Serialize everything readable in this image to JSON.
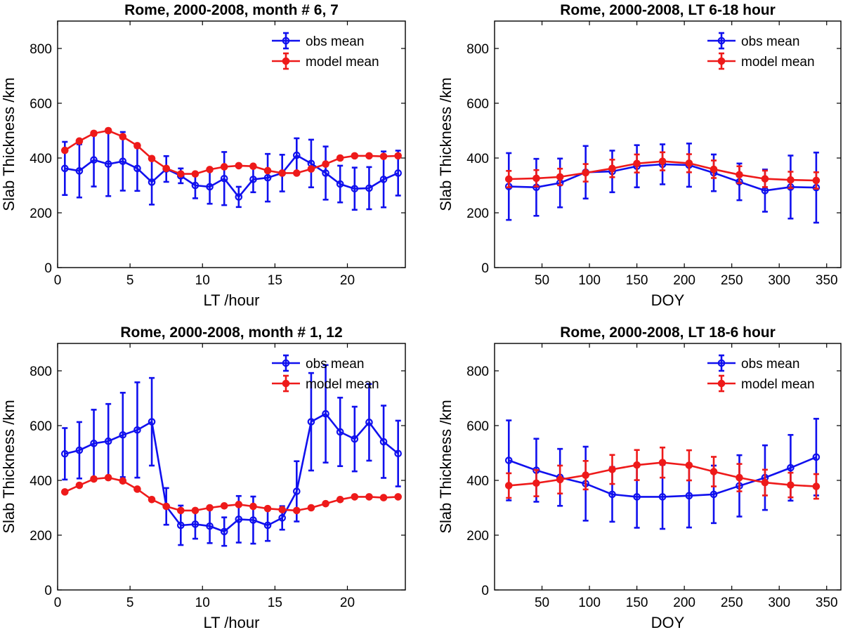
{
  "colors": {
    "obs": "#1010ee",
    "model": "#ee1a1a",
    "axis": "#000000",
    "background": "#ffffff"
  },
  "chart_data": [
    {
      "type": "line",
      "title": "Rome, 2000-2008, month # 6, 7",
      "xlabel": "LT /hour",
      "ylabel": "Slab Thickness /km",
      "xlim": [
        0,
        24
      ],
      "ylim": [
        0,
        900
      ],
      "xticks": [
        0,
        5,
        10,
        15,
        20
      ],
      "yticks": [
        0,
        200,
        400,
        600,
        800
      ],
      "legend": "top-right",
      "series": [
        {
          "name": "obs mean",
          "x": [
            0.5,
            1.5,
            2.5,
            3.5,
            4.5,
            5.5,
            6.5,
            7.5,
            8.5,
            9.5,
            10.5,
            11.5,
            12.5,
            13.5,
            14.5,
            15.5,
            16.5,
            17.5,
            18.5,
            19.5,
            20.5,
            21.5,
            22.5,
            23.5
          ],
          "y": [
            362,
            353,
            393,
            378,
            388,
            362,
            312,
            360,
            335,
            300,
            295,
            325,
            258,
            322,
            328,
            345,
            410,
            380,
            345,
            305,
            288,
            290,
            322,
            345
          ],
          "err": [
            97,
            97,
            97,
            117,
            107,
            82,
            82,
            47,
            27,
            47,
            62,
            97,
            37,
            47,
            87,
            67,
            62,
            87,
            97,
            67,
            77,
            77,
            102,
            82
          ]
        },
        {
          "name": "model mean",
          "x": [
            0.5,
            1.5,
            2.5,
            3.5,
            4.5,
            5.5,
            6.5,
            7.5,
            8.5,
            9.5,
            10.5,
            11.5,
            12.5,
            13.5,
            14.5,
            15.5,
            16.5,
            17.5,
            18.5,
            19.5,
            20.5,
            21.5,
            22.5,
            23.5
          ],
          "y": [
            428,
            462,
            490,
            500,
            478,
            445,
            398,
            362,
            342,
            342,
            358,
            368,
            372,
            370,
            354,
            345,
            345,
            360,
            378,
            400,
            408,
            408,
            406,
            408
          ],
          "err": [
            6,
            6,
            7,
            7,
            7,
            7,
            6,
            6,
            5,
            5,
            5,
            5,
            5,
            5,
            5,
            5,
            5,
            5,
            6,
            6,
            6,
            6,
            6,
            6
          ]
        }
      ]
    },
    {
      "type": "line",
      "title": "Rome, 2000-2008, LT 6-18 hour",
      "xlabel": "DOY",
      "ylabel": "Slab Thickness /km",
      "xlim": [
        0,
        365
      ],
      "ylim": [
        0,
        900
      ],
      "xticks": [
        50,
        100,
        150,
        200,
        250,
        300,
        350
      ],
      "yticks": [
        0,
        200,
        400,
        600,
        800
      ],
      "legend": "top-right",
      "series": [
        {
          "name": "obs mean",
          "x": [
            15,
            44,
            69,
            96,
            124,
            150,
            177,
            205,
            231,
            258,
            285,
            312,
            339
          ],
          "y": [
            296,
            293,
            309,
            348,
            351,
            370,
            377,
            374,
            346,
            313,
            281,
            294,
            292
          ],
          "err": [
            122,
            104,
            89,
            96,
            76,
            77,
            73,
            79,
            67,
            67,
            77,
            115,
            128
          ]
        },
        {
          "name": "model mean",
          "x": [
            15,
            44,
            69,
            96,
            124,
            150,
            177,
            205,
            231,
            258,
            285,
            312,
            339
          ],
          "y": [
            323,
            326,
            331,
            346,
            362,
            380,
            388,
            381,
            359,
            339,
            324,
            320,
            318
          ],
          "err": [
            30,
            30,
            30,
            32,
            32,
            33,
            33,
            33,
            32,
            31,
            30,
            30,
            30
          ]
        }
      ]
    },
    {
      "type": "line",
      "title": "Rome, 2000-2008, month # 1, 12",
      "xlabel": "LT /hour",
      "ylabel": "Slab Thickness /km",
      "xlim": [
        0,
        24
      ],
      "ylim": [
        0,
        900
      ],
      "xticks": [
        0,
        5,
        10,
        15,
        20
      ],
      "yticks": [
        0,
        200,
        400,
        600,
        800
      ],
      "legend": "top-right",
      "series": [
        {
          "name": "obs mean",
          "x": [
            0.5,
            1.5,
            2.5,
            3.5,
            4.5,
            5.5,
            6.5,
            7.5,
            8.5,
            9.5,
            10.5,
            11.5,
            12.5,
            13.5,
            14.5,
            15.5,
            16.5,
            17.5,
            18.5,
            19.5,
            20.5,
            21.5,
            22.5,
            23.5
          ],
          "y": [
            497,
            510,
            535,
            543,
            566,
            584,
            614,
            305,
            236,
            240,
            233,
            213,
            258,
            255,
            236,
            263,
            360,
            614,
            643,
            577,
            551,
            612,
            541,
            498
          ],
          "err": [
            94,
            103,
            123,
            136,
            154,
            174,
            160,
            67,
            72,
            53,
            62,
            52,
            85,
            86,
            57,
            43,
            110,
            178,
            178,
            125,
            118,
            140,
            132,
            120
          ]
        },
        {
          "name": "model mean",
          "x": [
            0.5,
            1.5,
            2.5,
            3.5,
            4.5,
            5.5,
            6.5,
            7.5,
            8.5,
            9.5,
            10.5,
            11.5,
            12.5,
            13.5,
            14.5,
            15.5,
            16.5,
            17.5,
            18.5,
            19.5,
            20.5,
            21.5,
            22.5,
            23.5
          ],
          "y": [
            358,
            382,
            405,
            410,
            398,
            368,
            330,
            305,
            290,
            290,
            300,
            307,
            312,
            305,
            297,
            293,
            290,
            300,
            315,
            330,
            340,
            340,
            337,
            340
          ],
          "err": [
            6,
            6,
            6,
            6,
            6,
            6,
            5,
            5,
            5,
            5,
            5,
            5,
            5,
            5,
            5,
            5,
            5,
            5,
            5,
            5,
            5,
            5,
            5,
            5
          ]
        }
      ]
    },
    {
      "type": "line",
      "title": "Rome, 2000-2008, LT 18-6 hour",
      "xlabel": "DOY",
      "ylabel": "Slab Thickness /km",
      "xlim": [
        0,
        365
      ],
      "ylim": [
        0,
        900
      ],
      "xticks": [
        50,
        100,
        150,
        200,
        250,
        300,
        350
      ],
      "yticks": [
        0,
        200,
        400,
        600,
        800
      ],
      "legend": "top-right",
      "series": [
        {
          "name": "obs mean",
          "x": [
            15,
            44,
            69,
            96,
            124,
            150,
            177,
            205,
            231,
            258,
            285,
            312,
            339
          ],
          "y": [
            473,
            437,
            411,
            388,
            349,
            340,
            340,
            344,
            349,
            380,
            410,
            446,
            485
          ],
          "err": [
            146,
            115,
            104,
            135,
            100,
            113,
            117,
            116,
            105,
            112,
            118,
            120,
            140
          ]
        },
        {
          "name": "model mean",
          "x": [
            15,
            44,
            69,
            96,
            124,
            150,
            177,
            205,
            231,
            258,
            285,
            312,
            339
          ],
          "y": [
            381,
            390,
            403,
            419,
            440,
            456,
            465,
            455,
            432,
            410,
            392,
            383,
            378
          ],
          "err": [
            45,
            48,
            51,
            52,
            53,
            55,
            55,
            55,
            54,
            50,
            47,
            45,
            45
          ]
        }
      ]
    }
  ]
}
